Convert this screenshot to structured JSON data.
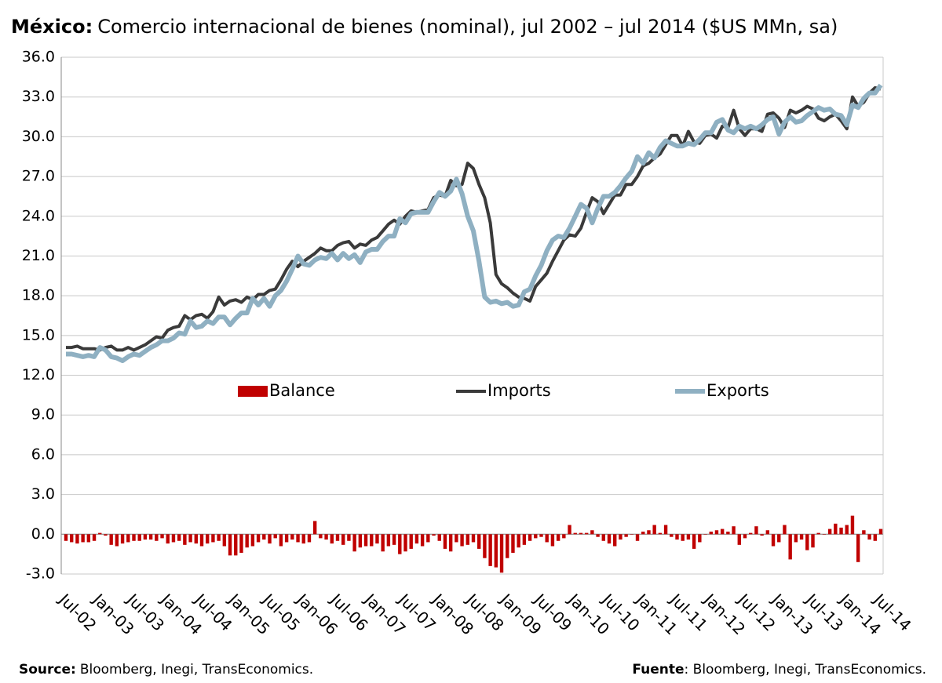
{
  "chart_data": {
    "type": "combo",
    "title_prefix": "México:",
    "title": "Comercio internacional de bienes (nominal), jul 2002 – jul 2014 ($US MMn, sa)",
    "source": {
      "prefix": "Source:",
      "text": "Bloomberg, Inegi, TransEconomics."
    },
    "fuente": {
      "prefix": "Fuente",
      "text": ": Bloomberg, Inegi, TransEconomics."
    },
    "categories": [
      "Jul-02",
      null,
      null,
      null,
      null,
      null,
      "Jan-03",
      null,
      null,
      null,
      null,
      null,
      "Jul-03",
      null,
      null,
      null,
      null,
      null,
      "Jan-04",
      null,
      null,
      null,
      null,
      null,
      "Jul-04",
      null,
      null,
      null,
      null,
      null,
      "Jan-05",
      null,
      null,
      null,
      null,
      null,
      "Jul-05",
      null,
      null,
      null,
      null,
      null,
      "Jan-06",
      null,
      null,
      null,
      null,
      null,
      "Jul-06",
      null,
      null,
      null,
      null,
      null,
      "Jan-07",
      null,
      null,
      null,
      null,
      null,
      "Jul-07",
      null,
      null,
      null,
      null,
      null,
      "Jan-08",
      null,
      null,
      null,
      null,
      null,
      "Jul-08",
      null,
      null,
      null,
      null,
      null,
      "Jan-09",
      null,
      null,
      null,
      null,
      null,
      "Jul-09",
      null,
      null,
      null,
      null,
      null,
      "Jan-10",
      null,
      null,
      null,
      null,
      null,
      "Jul-10",
      null,
      null,
      null,
      null,
      null,
      "Jan-11",
      null,
      null,
      null,
      null,
      null,
      "Jul-11",
      null,
      null,
      null,
      null,
      null,
      "Jan-12",
      null,
      null,
      null,
      null,
      null,
      "Jul-12",
      null,
      null,
      null,
      null,
      null,
      "Jan-13",
      null,
      null,
      null,
      null,
      null,
      "Jul-13",
      null,
      null,
      null,
      null,
      null,
      "Jan-14",
      null,
      null,
      null,
      null,
      null,
      "Jul-14"
    ],
    "ylim": [
      -3,
      36
    ],
    "yticks": [
      {
        "value": -3,
        "label": "-3.0"
      },
      {
        "value": 0,
        "label": "0.0"
      },
      {
        "value": 3,
        "label": "3.0"
      },
      {
        "value": 6,
        "label": "6.0"
      },
      {
        "value": 9,
        "label": "9.0"
      },
      {
        "value": 12,
        "label": "12.0"
      },
      {
        "value": 15,
        "label": "15.0"
      },
      {
        "value": 18,
        "label": "18.0"
      },
      {
        "value": 21,
        "label": "21.0"
      },
      {
        "value": 24,
        "label": "24.0"
      },
      {
        "value": 27,
        "label": "27.0"
      },
      {
        "value": 30,
        "label": "30.0"
      },
      {
        "value": 33,
        "label": "33.0"
      },
      {
        "value": 36,
        "label": "36.0"
      }
    ],
    "grid": true,
    "series": [
      {
        "name": "Balance",
        "type": "bar",
        "color": "#c00000",
        "values": [
          -0.5,
          -0.6,
          -0.7,
          -0.6,
          -0.6,
          -0.5,
          0.1,
          -0.1,
          -0.8,
          -0.9,
          -0.7,
          -0.6,
          -0.5,
          -0.5,
          -0.4,
          -0.4,
          -0.5,
          -0.3,
          -0.7,
          -0.6,
          -0.5,
          -0.8,
          -0.6,
          -0.7,
          -0.9,
          -0.7,
          -0.6,
          -0.5,
          -0.9,
          -1.6,
          -1.6,
          -1.4,
          -1.0,
          -0.9,
          -0.6,
          -0.4,
          -0.7,
          -0.3,
          -0.9,
          -0.6,
          -0.4,
          -0.6,
          -0.7,
          -0.6,
          1.0,
          -0.3,
          -0.4,
          -0.7,
          -0.5,
          -0.8,
          -0.5,
          -1.3,
          -1.0,
          -0.9,
          -0.9,
          -0.7,
          -1.3,
          -0.9,
          -0.8,
          -1.5,
          -1.3,
          -1.1,
          -0.7,
          -0.9,
          -0.6,
          -0.1,
          -0.5,
          -1.1,
          -1.3,
          -0.6,
          -0.9,
          -0.8,
          -0.6,
          -1.1,
          -1.8,
          -2.4,
          -2.5,
          -2.9,
          -1.8,
          -1.4,
          -1.0,
          -0.8,
          -0.5,
          -0.3,
          -0.2,
          -0.6,
          -0.9,
          -0.5,
          -0.3,
          0.7,
          0.1,
          0.1,
          0.1,
          0.3,
          -0.2,
          -0.5,
          -0.7,
          -0.9,
          -0.4,
          -0.2,
          0.0,
          -0.5,
          0.2,
          0.3,
          0.7,
          0.1,
          0.7,
          -0.2,
          -0.4,
          -0.5,
          -0.4,
          -1.1,
          -0.6,
          0.0,
          0.2,
          0.3,
          0.4,
          0.2,
          0.6,
          -0.8,
          -0.3,
          0.1,
          0.6,
          -0.1,
          0.3,
          -0.9,
          -0.6,
          0.7,
          -1.9,
          -0.6,
          -0.4,
          -1.2,
          -1.0,
          0.1,
          0.0,
          0.4,
          0.8,
          0.5,
          0.7,
          1.4,
          -2.1,
          0.3,
          -0.4,
          -0.5,
          0.4
        ]
      },
      {
        "name": "Imports",
        "type": "line",
        "color": "#3a3a3a",
        "values": [
          14.1,
          14.1,
          14.2,
          14.0,
          14.0,
          14.0,
          13.9,
          14.1,
          14.2,
          13.9,
          13.9,
          14.1,
          13.9,
          14.1,
          14.3,
          14.6,
          14.9,
          14.8,
          15.4,
          15.6,
          15.7,
          16.5,
          16.2,
          16.5,
          16.6,
          16.3,
          16.8,
          17.9,
          17.3,
          17.6,
          17.7,
          17.5,
          17.9,
          17.7,
          18.1,
          18.1,
          18.4,
          18.5,
          19.2,
          20.0,
          20.6,
          20.2,
          20.6,
          20.9,
          21.2,
          21.6,
          21.4,
          21.4,
          21.8,
          22.0,
          22.1,
          21.6,
          21.9,
          21.8,
          22.2,
          22.4,
          22.9,
          23.4,
          23.7,
          23.4,
          24.0,
          24.4,
          24.3,
          24.4,
          24.5,
          25.4,
          25.6,
          25.5,
          26.7,
          26.3,
          26.4,
          28.0,
          27.6,
          26.4,
          25.4,
          23.5,
          19.6,
          18.9,
          18.6,
          18.2,
          17.9,
          17.8,
          17.6,
          18.7,
          19.2,
          19.7,
          20.6,
          21.4,
          22.2,
          22.6,
          22.5,
          23.1,
          24.3,
          25.4,
          25.1,
          24.2,
          24.9,
          25.6,
          25.6,
          26.4,
          26.4,
          27.0,
          27.8,
          28.0,
          28.4,
          28.7,
          29.4,
          30.1,
          30.1,
          29.3,
          30.4,
          29.6,
          29.5,
          30.1,
          30.2,
          29.9,
          30.8,
          30.7,
          32.0,
          30.6,
          30.1,
          30.6,
          30.6,
          30.4,
          31.7,
          31.8,
          31.4,
          30.7,
          32.0,
          31.8,
          32.0,
          32.3,
          32.1,
          31.4,
          31.2,
          31.5,
          31.7,
          31.2,
          30.6,
          33.0,
          32.3,
          32.6,
          33.3,
          33.7,
          33.6
        ]
      },
      {
        "name": "Exports",
        "type": "line",
        "color": "#8fb0c2",
        "values": [
          13.6,
          13.6,
          13.5,
          13.4,
          13.5,
          13.4,
          14.1,
          13.9,
          13.4,
          13.3,
          13.1,
          13.4,
          13.6,
          13.5,
          13.8,
          14.1,
          14.3,
          14.6,
          14.6,
          14.8,
          15.2,
          15.1,
          16.1,
          15.6,
          15.7,
          16.1,
          15.9,
          16.4,
          16.4,
          15.8,
          16.3,
          16.7,
          16.7,
          17.8,
          17.3,
          17.8,
          17.2,
          18.0,
          18.4,
          19.1,
          20.0,
          21.0,
          20.4,
          20.3,
          20.7,
          20.9,
          20.8,
          21.2,
          20.7,
          21.2,
          20.8,
          21.1,
          20.5,
          21.3,
          21.5,
          21.5,
          22.1,
          22.5,
          22.5,
          23.8,
          23.5,
          24.2,
          24.3,
          24.3,
          24.3,
          25.1,
          25.8,
          25.5,
          25.9,
          26.8,
          25.7,
          24.0,
          22.9,
          20.6,
          17.9,
          17.5,
          17.6,
          17.4,
          17.5,
          17.2,
          17.3,
          18.3,
          18.5,
          19.5,
          20.3,
          21.4,
          22.2,
          22.5,
          22.4,
          23.1,
          24.0,
          24.9,
          24.6,
          23.5,
          24.6,
          25.5,
          25.5,
          25.8,
          26.3,
          26.9,
          27.4,
          28.5,
          28.0,
          28.8,
          28.4,
          29.2,
          29.7,
          29.5,
          29.3,
          29.3,
          29.5,
          29.4,
          29.8,
          30.3,
          30.3,
          31.1,
          31.3,
          30.5,
          30.3,
          30.8,
          30.6,
          30.8,
          30.6,
          30.9,
          31.3,
          31.5,
          30.2,
          31.1,
          31.5,
          31.1,
          31.2,
          31.6,
          31.9,
          32.2,
          32.0,
          32.1,
          31.7,
          31.6,
          30.9,
          32.4,
          32.2,
          32.9,
          33.3,
          33.3,
          33.9
        ]
      }
    ]
  }
}
